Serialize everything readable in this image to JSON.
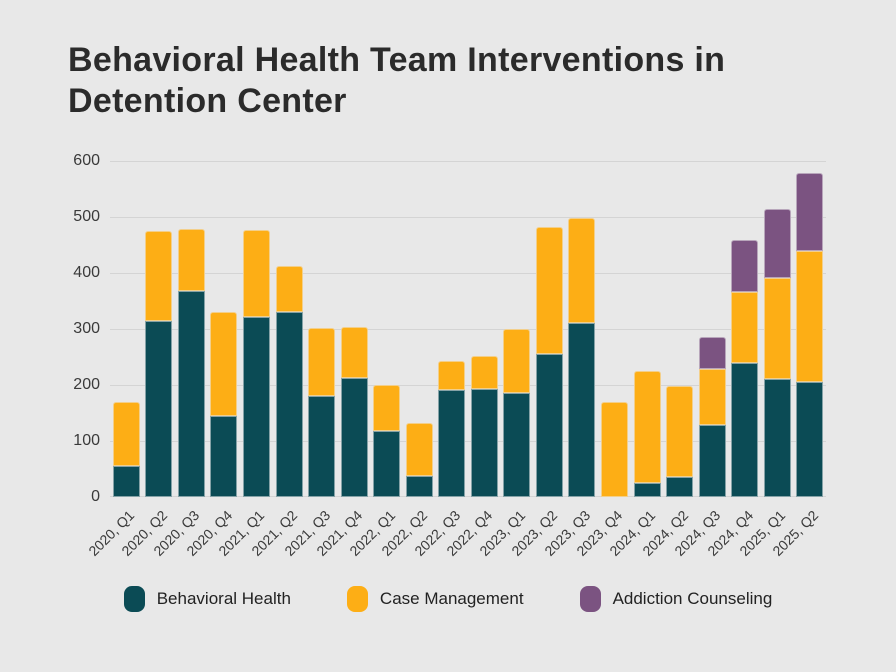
{
  "title": "Behavioral Health Team Interventions in Detention Center",
  "colors": {
    "background": "#e8e8e8",
    "gridline": "#d4d4d4",
    "title_text": "#2b2b2b",
    "axis_text": "#3a3a3a",
    "behavioral_health": "#0b4b55",
    "case_management": "#fdae15",
    "addiction_counseling": "#7b5381"
  },
  "chart_data": {
    "type": "bar",
    "stacked": true,
    "title": "Behavioral Health Team Interventions in Detention Center",
    "xlabel": "",
    "ylabel": "",
    "ylim": [
      0,
      600
    ],
    "yticks": [
      0,
      100,
      200,
      300,
      400,
      500,
      600
    ],
    "grid": true,
    "legend_position": "bottom",
    "categories": [
      "2020, Q1",
      "2020, Q2",
      "2020, Q3",
      "2020, Q4",
      "2021, Q1",
      "2021, Q2",
      "2021, Q3",
      "2021, Q4",
      "2022, Q1",
      "2022, Q2",
      "2022, Q3",
      "2022, Q4",
      "2023, Q1",
      "2023, Q2",
      "2023, Q3",
      "2023, Q4",
      "2024, Q1",
      "2024, Q2",
      "2024, Q3",
      "2024, Q4",
      "2025, Q1",
      "2025, Q2"
    ],
    "series": [
      {
        "name": "Behavioral Health",
        "color": "#0b4b55",
        "values": [
          55,
          315,
          368,
          145,
          322,
          330,
          181,
          213,
          118,
          37,
          191,
          192,
          186,
          256,
          310,
          0,
          25,
          35,
          128,
          239,
          210,
          206
        ]
      },
      {
        "name": "Case Management",
        "color": "#fdae15",
        "values": [
          115,
          160,
          110,
          185,
          155,
          82,
          120,
          90,
          82,
          96,
          52,
          60,
          114,
          226,
          188,
          170,
          200,
          163,
          100,
          127,
          181,
          233
        ]
      },
      {
        "name": "Addiction Counseling",
        "color": "#7b5381",
        "values": [
          0,
          0,
          0,
          0,
          0,
          0,
          0,
          0,
          0,
          0,
          0,
          0,
          0,
          0,
          0,
          0,
          0,
          0,
          58,
          93,
          124,
          139
        ]
      }
    ]
  }
}
